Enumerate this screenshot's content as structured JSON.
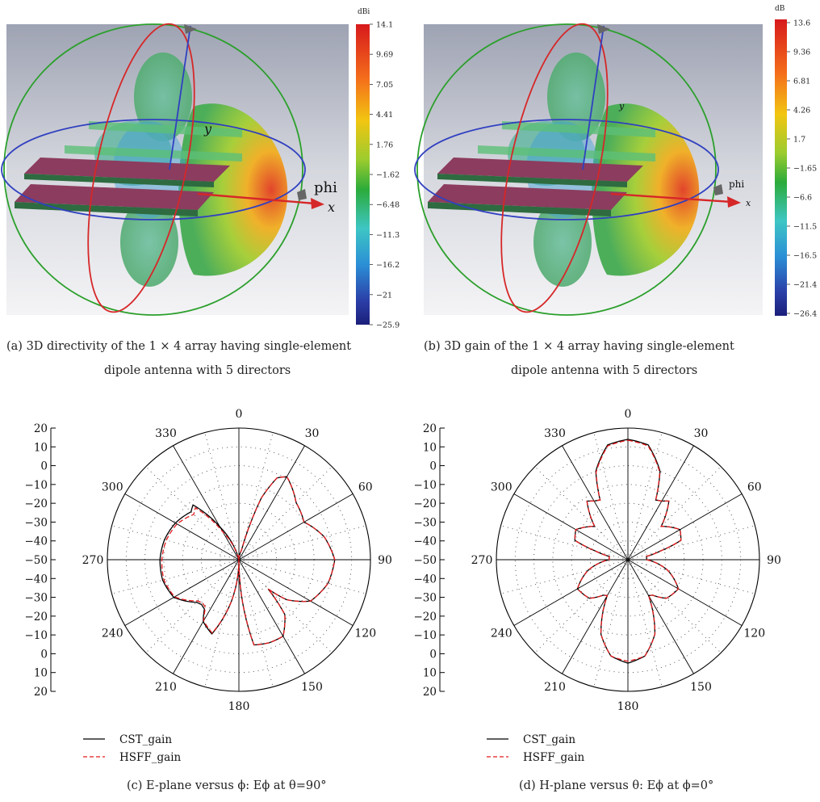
{
  "panels": {
    "a": {
      "caption_line1": "(a) 3D directivity of the 1 × 4 array having single-element",
      "caption_line2": "dipole antenna with 5 directors",
      "colorbar": {
        "unit": "dBi",
        "ticks": [
          "14.1",
          "9.69",
          "7.05",
          "4.41",
          "1.76",
          "−1.62",
          "−6.48",
          "−11.3",
          "−16.2",
          "−21",
          "−25.9"
        ]
      },
      "labels": {
        "y": "y",
        "x": "x",
        "phi": "phi"
      }
    },
    "b": {
      "caption_line1": "(b) 3D gain of the 1 × 4 array having single-element",
      "caption_line2": "dipole antenna with 5 directors",
      "colorbar": {
        "unit": "dB",
        "ticks": [
          "13.6",
          "9.36",
          "6.81",
          "4.26",
          "1.7",
          "−1.65",
          "−6.6",
          "−11.5",
          "−16.5",
          "−21.4",
          "−26.4"
        ]
      },
      "labels": {
        "y": "y",
        "x": "x",
        "phi": "phi"
      }
    },
    "c": {
      "caption": "(c) E-plane versus ϕ: Eϕ at θ=90°"
    },
    "d": {
      "caption": "(d) H-plane versus θ: Eϕ at ϕ=0°"
    }
  },
  "polar_angle_labels": [
    "0",
    "30",
    "60",
    "90",
    "120",
    "150",
    "180",
    "210",
    "240",
    "270",
    "300",
    "330"
  ],
  "polar_scale_labels": [
    "20",
    "10",
    "0",
    "−10",
    "−20",
    "−30",
    "−40",
    "−50",
    "−40",
    "−30",
    "−20",
    "−10",
    "0",
    "10",
    "20"
  ],
  "legend": {
    "cst": "CST_gain",
    "hsff": "HSFF_gain"
  },
  "colors": {
    "cst": "#000000",
    "hsff": "#e31a1c",
    "red_ring": "#d62728",
    "green_ring": "#2ca02c",
    "blue_ring": "#3040c0",
    "arrow": "#d62728"
  },
  "chart_data": [
    {
      "type": "line",
      "subtype": "polar",
      "title": "E-plane versus ϕ: Eϕ at θ=90°",
      "angle_unit": "deg",
      "r_range": [
        -50,
        20
      ],
      "grid": true,
      "x": [
        0,
        15,
        20,
        25,
        30,
        45,
        60,
        75,
        90,
        105,
        120,
        130,
        135,
        140,
        150,
        160,
        170,
        180,
        190,
        200,
        210,
        215,
        220,
        225,
        240,
        255,
        270,
        285,
        300,
        315,
        320,
        330,
        345
      ],
      "series": [
        {
          "name": "CST_gain",
          "values": [
            -50,
            -45,
            -15,
            -2,
            1,
            -7,
            -10,
            -3,
            1,
            -1,
            -6,
            -17,
            -28,
            -12,
            -3,
            -3,
            -4,
            -50,
            -28,
            -8,
            -12,
            -18,
            -19,
            -18,
            -10,
            -8,
            -8,
            -9,
            -11,
            -14,
            -12,
            -30,
            -50
          ]
        },
        {
          "name": "HSFF_gain",
          "values": [
            -50,
            -45,
            -15,
            -2,
            1,
            -7,
            -10,
            -3,
            1,
            -1,
            -6,
            -17,
            -28,
            -12,
            -3,
            -3,
            -4,
            -50,
            -28,
            -8.5,
            -12.5,
            -19,
            -20,
            -19,
            -10.5,
            -8.7,
            -9,
            -10,
            -12,
            -16,
            -14,
            -33,
            -50
          ]
        }
      ]
    },
    {
      "type": "line",
      "subtype": "polar",
      "title": "H-plane versus θ: Eϕ at ϕ=0°",
      "angle_unit": "deg",
      "r_range": [
        -50,
        20
      ],
      "grid": true,
      "x": [
        0,
        10,
        20,
        25,
        30,
        35,
        45,
        60,
        70,
        75,
        80,
        90,
        105,
        120,
        135,
        145,
        150,
        160,
        170,
        180,
        190,
        200,
        210,
        215,
        225,
        240,
        255,
        270,
        280,
        285,
        290,
        300,
        315,
        325,
        330,
        335,
        340,
        350
      ],
      "series": [
        {
          "name": "CST_gain",
          "values": [
            14,
            12,
            0,
            -15,
            -14,
            -12,
            -25,
            -18,
            -20,
            -32,
            -40,
            -40,
            -28,
            -19,
            -21,
            -27,
            -28,
            -8,
            2,
            5,
            2,
            -8,
            -28,
            -27,
            -21,
            -19,
            -28,
            -40,
            -40,
            -32,
            -20,
            -18,
            -25,
            -12,
            -14,
            -15,
            0,
            12
          ]
        },
        {
          "name": "HSFF_gain",
          "values": [
            13.5,
            11.5,
            -0.5,
            -15,
            -14,
            -12,
            -25,
            -18,
            -20,
            -32,
            -40,
            -40,
            -28,
            -19,
            -21,
            -27,
            -28,
            -8,
            2,
            4,
            2,
            -8,
            -28,
            -27,
            -21,
            -19,
            -28,
            -40,
            -40,
            -32,
            -20,
            -18,
            -25,
            -12,
            -14,
            -15,
            -0.5,
            11.5
          ]
        }
      ]
    }
  ]
}
